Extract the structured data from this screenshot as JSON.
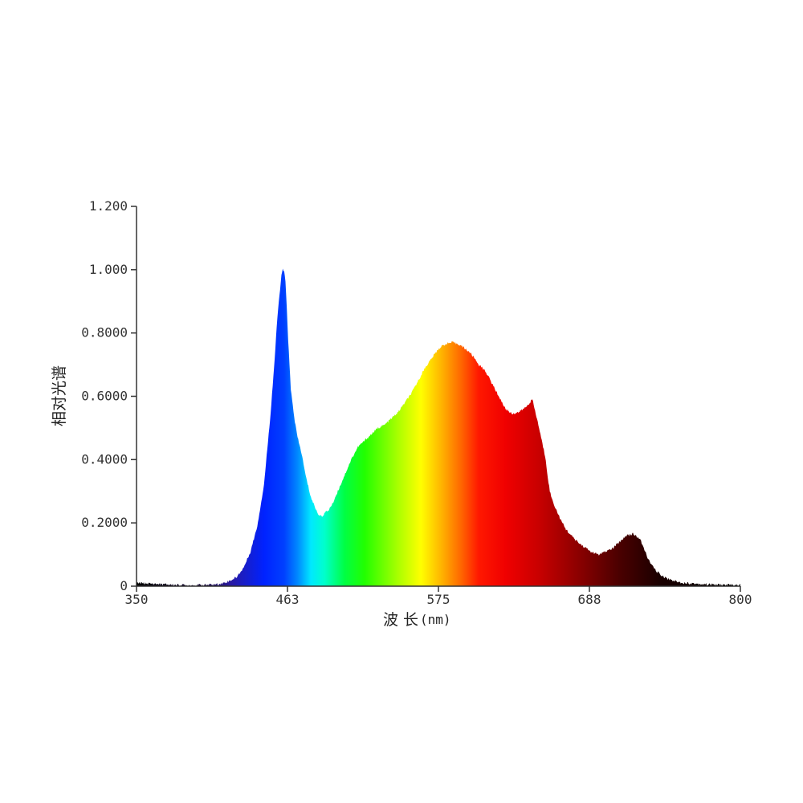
{
  "chart_data": {
    "type": "area",
    "xlabel": "波 长",
    "xlabel_unit": "(nm)",
    "ylabel": "相对光谱",
    "xlim": [
      350,
      800
    ],
    "ylim": [
      0,
      1.2
    ],
    "x_ticks": [
      "350",
      "463",
      "575",
      "688",
      "800"
    ],
    "y_ticks": [
      "0",
      "0.2000",
      "0.4000",
      "0.6000",
      "0.8000",
      "1.000",
      "1.200"
    ],
    "grid": false,
    "legend": "none",
    "fill": "visible-spectrum gradient by wavelength",
    "x": [
      350,
      360,
      370,
      380,
      390,
      400,
      410,
      415,
      420,
      425,
      430,
      435,
      440,
      445,
      450,
      453,
      455,
      457,
      458,
      459,
      460,
      461,
      462,
      463,
      465,
      468,
      470,
      473,
      476,
      480,
      485,
      488,
      490,
      493,
      496,
      500,
      505,
      510,
      515,
      520,
      525,
      530,
      535,
      540,
      545,
      550,
      555,
      560,
      565,
      570,
      575,
      580,
      585,
      590,
      595,
      598,
      600,
      602,
      605,
      610,
      615,
      620,
      625,
      630,
      635,
      640,
      645,
      650,
      653,
      655,
      656,
      657,
      658,
      660,
      663,
      666,
      670,
      675,
      680,
      685,
      690,
      695,
      700,
      705,
      710,
      715,
      720,
      725,
      728,
      730,
      732,
      735,
      738,
      741,
      745,
      750,
      755,
      760,
      770,
      780,
      790,
      800
    ],
    "values": [
      0.01,
      0.008,
      0.006,
      0.004,
      0.003,
      0.004,
      0.006,
      0.01,
      0.018,
      0.03,
      0.06,
      0.11,
      0.19,
      0.32,
      0.55,
      0.72,
      0.85,
      0.94,
      0.98,
      1.0,
      0.995,
      0.96,
      0.88,
      0.78,
      0.62,
      0.52,
      0.47,
      0.42,
      0.35,
      0.28,
      0.23,
      0.22,
      0.23,
      0.24,
      0.26,
      0.3,
      0.35,
      0.4,
      0.44,
      0.46,
      0.48,
      0.5,
      0.51,
      0.53,
      0.55,
      0.58,
      0.61,
      0.65,
      0.69,
      0.72,
      0.75,
      0.765,
      0.77,
      0.765,
      0.75,
      0.74,
      0.73,
      0.72,
      0.7,
      0.68,
      0.64,
      0.6,
      0.56,
      0.545,
      0.55,
      0.565,
      0.59,
      0.5,
      0.44,
      0.4,
      0.36,
      0.33,
      0.3,
      0.27,
      0.24,
      0.21,
      0.18,
      0.155,
      0.135,
      0.12,
      0.105,
      0.1,
      0.11,
      0.12,
      0.14,
      0.16,
      0.165,
      0.15,
      0.12,
      0.1,
      0.08,
      0.06,
      0.045,
      0.035,
      0.025,
      0.018,
      0.012,
      0.01,
      0.007,
      0.005,
      0.004,
      0.003
    ]
  }
}
